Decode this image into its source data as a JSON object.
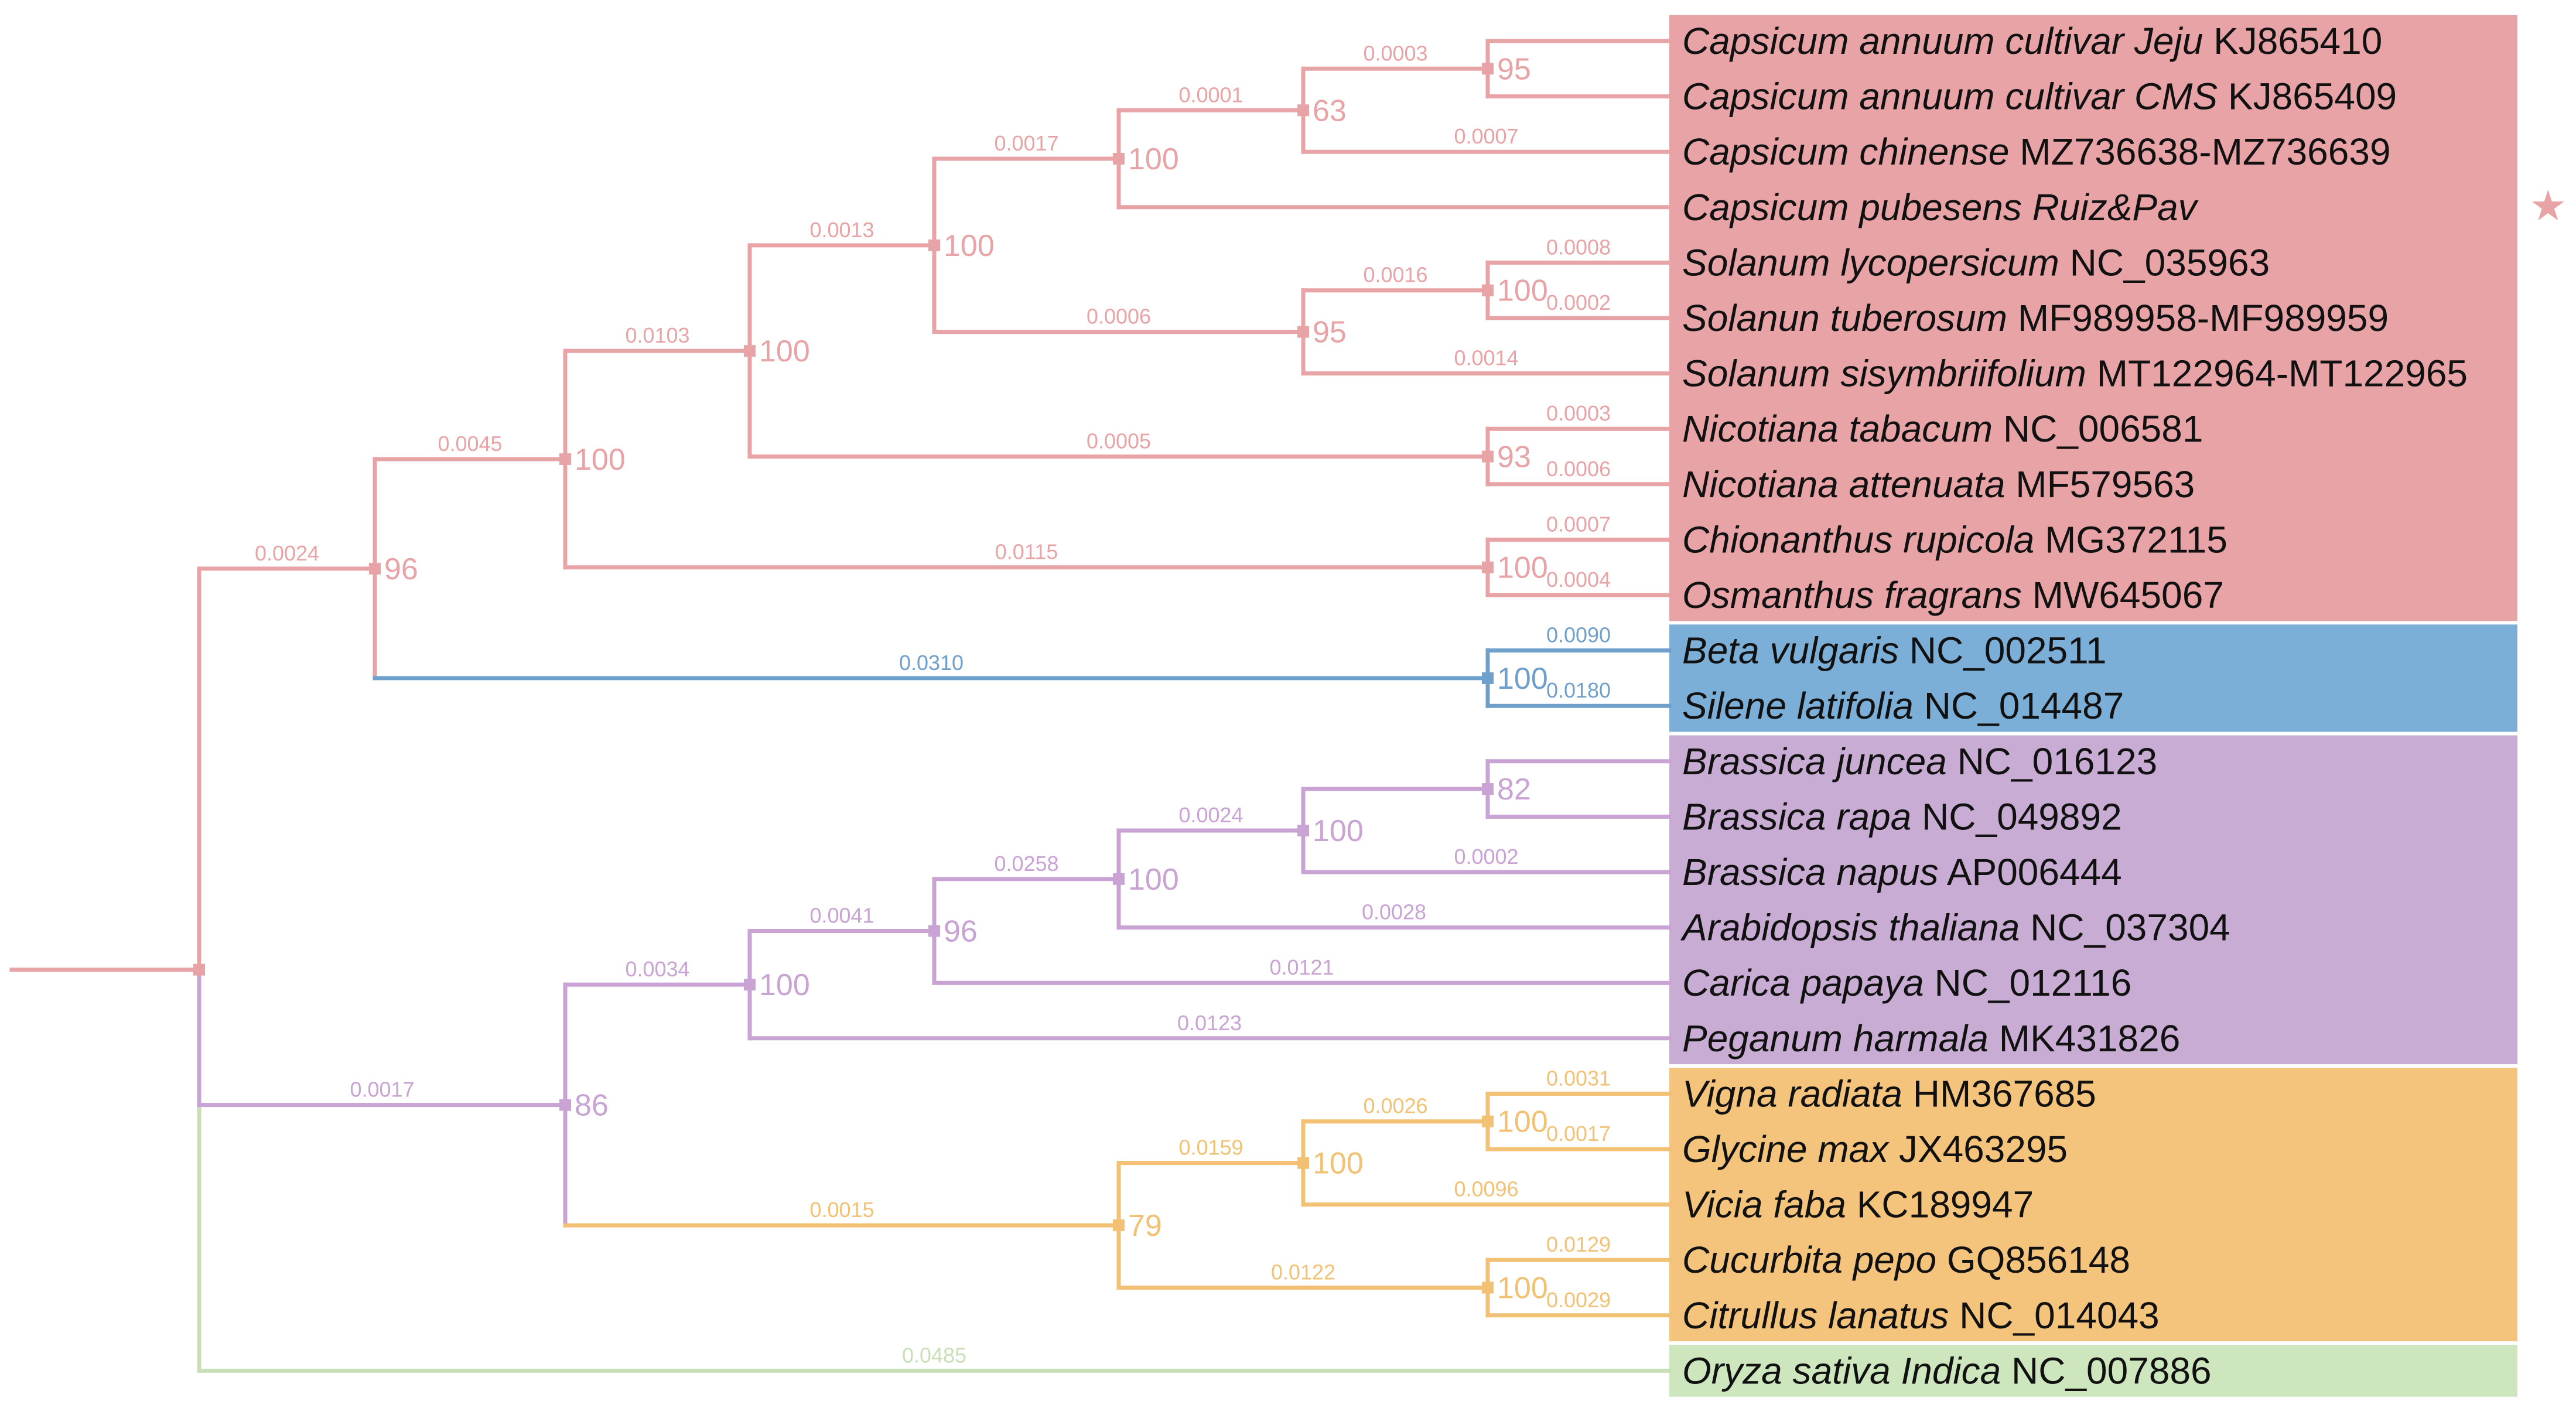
{
  "colors": {
    "solanales": "#E8A3A6",
    "caryophyllales": "#7BAFD7",
    "brassicales": "#C8ACD3",
    "fabales_cucurbitales": "#F4C47C",
    "outgroup": "#CDE6BE",
    "branch_solanales": "#E8A3A6",
    "branch_caryophyllales": "#6F9FCB",
    "branch_brassicales": "#C8A3D3",
    "branch_fabales": "#F2C173",
    "branch_outgroup": "#C9DFB7"
  },
  "tips": [
    {
      "species": "Capsicum annuum cultivar Jeju",
      "accession": "KJ865410",
      "clade": "solanales"
    },
    {
      "species": "Capsicum annuum cultivar CMS",
      "accession": "KJ865409",
      "clade": "solanales"
    },
    {
      "species": "Capsicum chinense",
      "accession": "MZ736638-MZ736639",
      "clade": "solanales"
    },
    {
      "species": "Capsicum pubesens Ruiz&Pav",
      "accession": "",
      "clade": "solanales",
      "marker": "star-icon"
    },
    {
      "species": "Solanum lycopersicum",
      "accession": "NC_035963",
      "clade": "solanales"
    },
    {
      "species": "Solanun tuberosum",
      "accession": "MF989958-MF989959",
      "clade": "solanales"
    },
    {
      "species": "Solanum sisymbriifolium",
      "accession": "MT122964-MT122965",
      "clade": "solanales"
    },
    {
      "species": "Nicotiana tabacum",
      "accession": "NC_006581",
      "clade": "solanales"
    },
    {
      "species": "Nicotiana attenuata",
      "accession": "MF579563",
      "clade": "solanales"
    },
    {
      "species": "Chionanthus rupicola",
      "accession": "MG372115",
      "clade": "solanales"
    },
    {
      "species": "Osmanthus fragrans",
      "accession": "MW645067",
      "clade": "solanales"
    },
    {
      "species": "Beta vulgaris",
      "accession": "NC_002511",
      "clade": "caryophyllales"
    },
    {
      "species": "Silene latifolia",
      "accession": "NC_014487",
      "clade": "caryophyllales"
    },
    {
      "species": "Brassica juncea",
      "accession": "NC_016123",
      "clade": "brassicales"
    },
    {
      "species": "Brassica rapa",
      "accession": "NC_049892",
      "clade": "brassicales"
    },
    {
      "species": "Brassica napus",
      "accession": "AP006444",
      "clade": "brassicales"
    },
    {
      "species": "Arabidopsis thaliana",
      "accession": "NC_037304",
      "clade": "brassicales"
    },
    {
      "species": "Carica papaya",
      "accession": "NC_012116",
      "clade": "brassicales"
    },
    {
      "species": "Peganum harmala",
      "accession": "MK431826",
      "clade": "brassicales"
    },
    {
      "species": "Vigna radiata",
      "accession": "HM367685",
      "clade": "fabales_cucurbitales"
    },
    {
      "species": "Glycine max",
      "accession": "JX463295",
      "clade": "fabales_cucurbitales"
    },
    {
      "species": "Vicia faba",
      "accession": "KC189947",
      "clade": "fabales_cucurbitales"
    },
    {
      "species": "Cucurbita pepo",
      "accession": "GQ856148",
      "clade": "fabales_cucurbitales"
    },
    {
      "species": "Citrullus lanatus",
      "accession": "NC_014043",
      "clade": "fabales_cucurbitales"
    },
    {
      "species": "Oryza sativa Indica",
      "accession": "NC_007886",
      "clade": "outgroup"
    }
  ],
  "tree": {
    "clade": "solanales",
    "depth": 0,
    "children": [
      {
        "clade": "solanales",
        "len": "0.0024",
        "boot": "96",
        "depth": 1,
        "children": [
          {
            "clade": "solanales",
            "len": "0.0045",
            "boot": "100",
            "depth": 2,
            "children": [
              {
                "clade": "solanales",
                "len": "0.0103",
                "boot": "100",
                "depth": 3,
                "children": [
                  {
                    "clade": "solanales",
                    "len": "0.0013",
                    "boot": "100",
                    "depth": 4,
                    "children": [
                      {
                        "clade": "solanales",
                        "len": "0.0017",
                        "boot": "100",
                        "depth": 5,
                        "children": [
                          {
                            "clade": "solanales",
                            "len": "0.0001",
                            "boot": "63",
                            "depth": 6,
                            "children": [
                              {
                                "clade": "solanales",
                                "len": "0.0003",
                                "boot": "95",
                                "depth": 7,
                                "children": [
                                  {
                                    "tip": 0,
                                    "clade": "solanales",
                                    "len": ""
                                  },
                                  {
                                    "tip": 1,
                                    "clade": "solanales",
                                    "len": ""
                                  }
                                ]
                              },
                              {
                                "tip": 2,
                                "clade": "solanales",
                                "len": "0.0007"
                              }
                            ]
                          },
                          {
                            "tip": 3,
                            "clade": "solanales",
                            "len": ""
                          }
                        ]
                      },
                      {
                        "clade": "solanales",
                        "len": "0.0006",
                        "boot": "95",
                        "depth": 6,
                        "children": [
                          {
                            "clade": "solanales",
                            "len": "0.0016",
                            "boot": "100",
                            "depth": 7,
                            "children": [
                              {
                                "tip": 4,
                                "clade": "solanales",
                                "len": "0.0008"
                              },
                              {
                                "tip": 5,
                                "clade": "solanales",
                                "len": "0.0002"
                              }
                            ]
                          },
                          {
                            "tip": 6,
                            "clade": "solanales",
                            "len": "0.0014"
                          }
                        ]
                      }
                    ]
                  },
                  {
                    "clade": "solanales",
                    "len": "0.0005",
                    "boot": "93",
                    "depth": 7,
                    "children": [
                      {
                        "tip": 7,
                        "clade": "solanales",
                        "len": "0.0003"
                      },
                      {
                        "tip": 8,
                        "clade": "solanales",
                        "len": "0.0006"
                      }
                    ]
                  }
                ]
              },
              {
                "clade": "solanales",
                "len": "0.0115",
                "boot": "100",
                "depth": 7,
                "children": [
                  {
                    "tip": 9,
                    "clade": "solanales",
                    "len": "0.0007"
                  },
                  {
                    "tip": 10,
                    "clade": "solanales",
                    "len": "0.0004"
                  }
                ]
              }
            ]
          },
          {
            "clade": "caryophyllales",
            "len": "0.0310",
            "boot": "100",
            "depth": 7,
            "children": [
              {
                "tip": 11,
                "clade": "caryophyllales",
                "len": "0.0090"
              },
              {
                "tip": 12,
                "clade": "caryophyllales",
                "len": "0.0180"
              }
            ]
          }
        ]
      },
      {
        "clade": "brassicales",
        "len": "0.0017",
        "boot": "86",
        "depth": 2,
        "children": [
          {
            "clade": "brassicales",
            "len": "0.0034",
            "boot": "100",
            "depth": 3,
            "children": [
              {
                "clade": "brassicales",
                "len": "0.0041",
                "boot": "96",
                "depth": 4,
                "children": [
                  {
                    "clade": "brassicales",
                    "len": "0.0258",
                    "boot": "100",
                    "depth": 5,
                    "children": [
                      {
                        "clade": "brassicales",
                        "len": "0.0024",
                        "boot": "100",
                        "depth": 6,
                        "children": [
                          {
                            "clade": "brassicales",
                            "len": "",
                            "boot": "82",
                            "depth": 7,
                            "children": [
                              {
                                "tip": 13,
                                "clade": "brassicales",
                                "len": ""
                              },
                              {
                                "tip": 14,
                                "clade": "brassicales",
                                "len": ""
                              }
                            ]
                          },
                          {
                            "tip": 15,
                            "clade": "brassicales",
                            "len": "0.0002"
                          }
                        ]
                      },
                      {
                        "tip": 16,
                        "clade": "brassicales",
                        "len": "0.0028"
                      }
                    ]
                  },
                  {
                    "tip": 17,
                    "clade": "brassicales",
                    "len": "0.0121"
                  }
                ]
              },
              {
                "tip": 18,
                "clade": "brassicales",
                "len": "0.0123"
              }
            ]
          },
          {
            "clade": "fabales_cucurbitales",
            "len": "0.0015",
            "boot": "79",
            "depth": 5,
            "children": [
              {
                "clade": "fabales_cucurbitales",
                "len": "0.0159",
                "boot": "100",
                "depth": 6,
                "children": [
                  {
                    "clade": "fabales_cucurbitales",
                    "len": "0.0026",
                    "boot": "100",
                    "depth": 7,
                    "children": [
                      {
                        "tip": 19,
                        "clade": "fabales_cucurbitales",
                        "len": "0.0031"
                      },
                      {
                        "tip": 20,
                        "clade": "fabales_cucurbitales",
                        "len": "0.0017"
                      }
                    ]
                  },
                  {
                    "tip": 21,
                    "clade": "fabales_cucurbitales",
                    "len": "0.0096"
                  }
                ]
              },
              {
                "clade": "fabales_cucurbitales",
                "len": "0.0122",
                "boot": "100",
                "depth": 7,
                "children": [
                  {
                    "tip": 22,
                    "clade": "fabales_cucurbitales",
                    "len": "0.0129"
                  },
                  {
                    "tip": 23,
                    "clade": "fabales_cucurbitales",
                    "len": "0.0029"
                  }
                ]
              }
            ]
          }
        ]
      },
      {
        "tip": 24,
        "clade": "outgroup",
        "len": "0.0485"
      }
    ]
  }
}
